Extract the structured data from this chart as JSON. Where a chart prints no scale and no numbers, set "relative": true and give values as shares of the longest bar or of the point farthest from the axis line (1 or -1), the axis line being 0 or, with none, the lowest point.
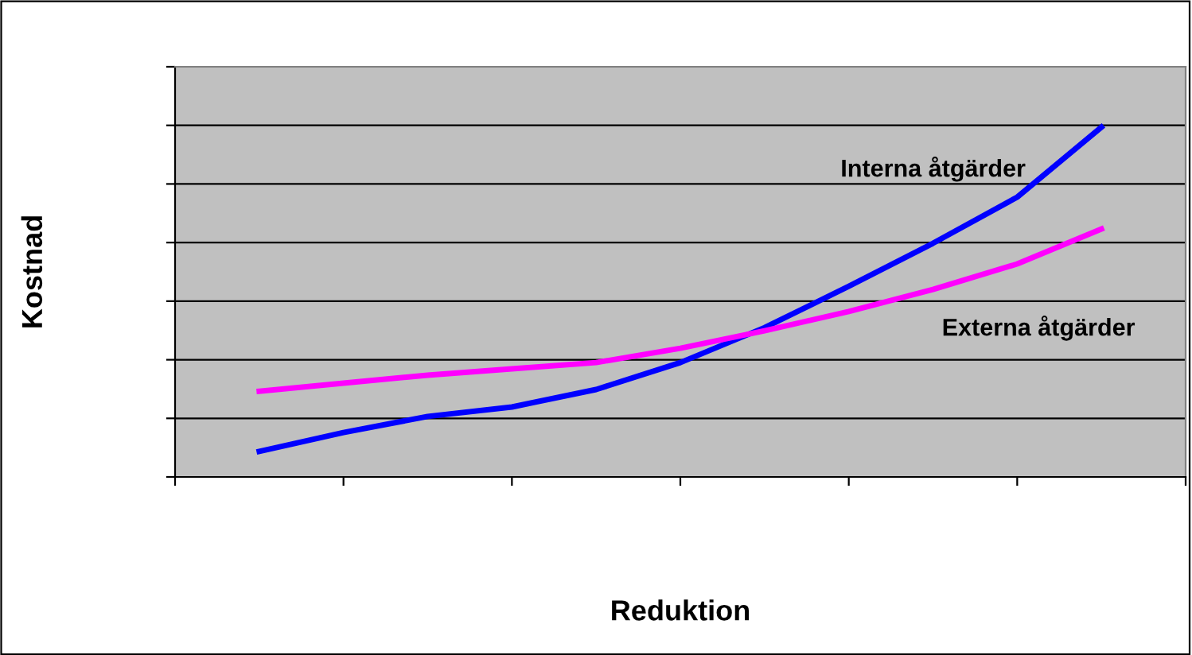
{
  "chart_data": {
    "type": "line",
    "xlabel": "Reduktion",
    "ylabel": "Kostnad",
    "relative": true,
    "grid": "y",
    "legend": false,
    "marker": "none",
    "line_style": "solid",
    "categories": [
      null,
      null,
      null,
      null,
      null,
      null,
      null,
      null,
      null,
      null,
      null
    ],
    "series": [
      {
        "name": "Interna åtgärder",
        "color": "#0000ff",
        "values": [
          0.073,
          0.127,
          0.173,
          0.2,
          0.25,
          0.327,
          0.427,
          0.545,
          0.668,
          0.8,
          1
        ]
      },
      {
        "name": "Externa åtgärder",
        "color": "#ff00ff",
        "values": [
          0.245,
          0.268,
          0.291,
          0.309,
          0.327,
          0.368,
          0.418,
          0.473,
          0.536,
          0.609,
          0.709
        ]
      }
    ]
  }
}
